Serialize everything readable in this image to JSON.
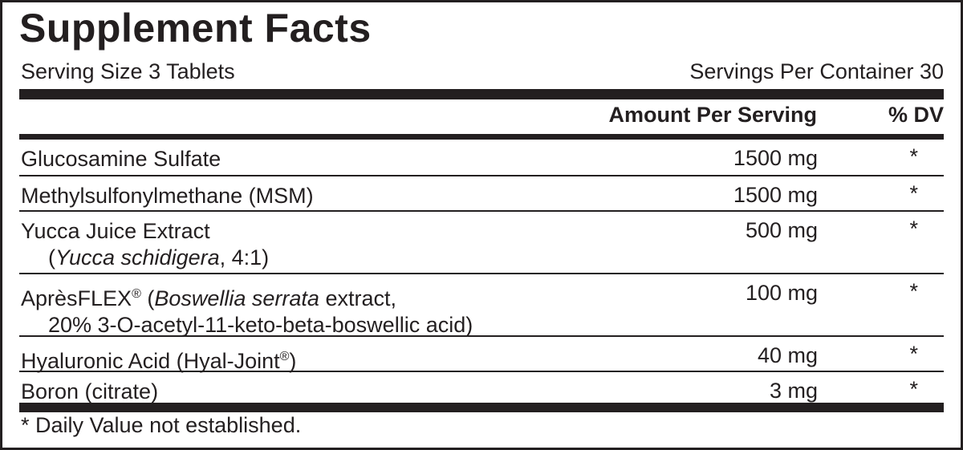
{
  "title": "Supplement Facts",
  "serving_size": "Serving Size 3 Tablets",
  "servings_per_container": "Servings Per Container 30",
  "headers": {
    "amount": "Amount Per Serving",
    "dv": "% DV"
  },
  "rows": [
    {
      "name": "Glucosamine Sulfate",
      "amount": "1500 mg",
      "dv": "*"
    },
    {
      "name": "Methylsulfonylmethane (MSM)",
      "amount": "1500 mg",
      "dv": "*"
    },
    {
      "name": "Yucca Juice Extract",
      "sub_pre": "(",
      "sub_italic": "Yucca schidigera",
      "sub_post": ", 4:1)",
      "amount": "500 mg",
      "dv": "*"
    },
    {
      "name": "AprèsFLEX",
      "reg": "®",
      "pre": " (",
      "italic": "Boswellia serrata",
      "post": " extract,",
      "line2": "20% 3-O-acetyl-11-keto-beta-boswellic acid)",
      "amount": "100 mg",
      "dv": "*"
    },
    {
      "name": "Hyaluronic Acid (Hyal-Joint",
      "reg": "®",
      "post": ")",
      "amount": "40 mg",
      "dv": "*"
    },
    {
      "name": "Boron (citrate)",
      "amount": "3 mg",
      "dv": "*"
    }
  ],
  "footnote": "* Daily Value not established."
}
